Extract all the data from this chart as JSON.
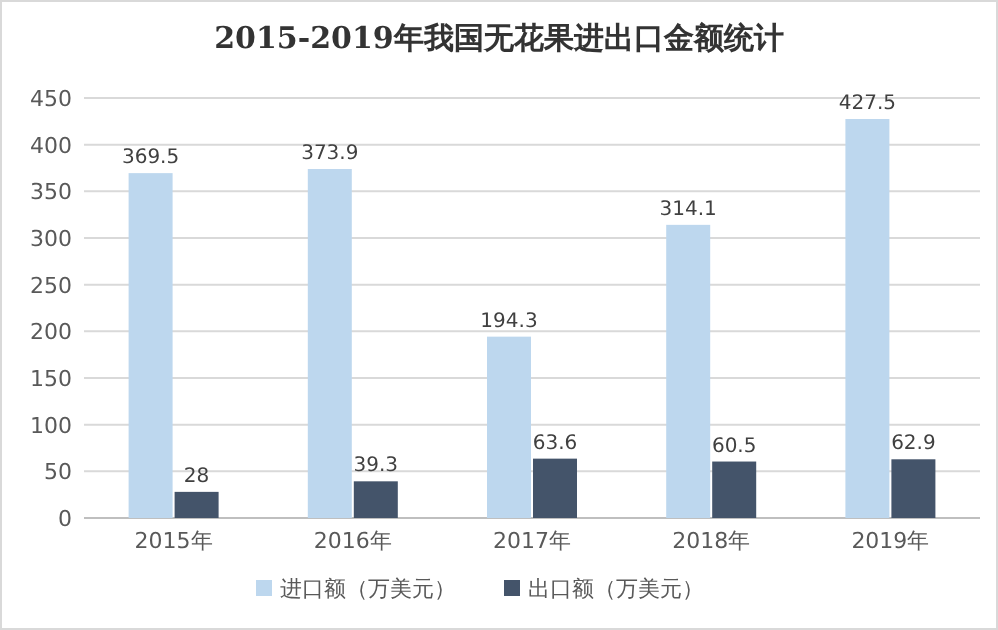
{
  "chart_data": {
    "type": "bar",
    "title": "2015-2019年我国无花果进出口金额统计",
    "categories": [
      "2015年",
      "2016年",
      "2017年",
      "2018年",
      "2019年"
    ],
    "series": [
      {
        "name": "进口额（万美元）",
        "color": "#bdd7ee",
        "values": [
          369.5,
          373.9,
          194.3,
          314.1,
          427.5
        ]
      },
      {
        "name": "出口额（万美元）",
        "color": "#44546a",
        "values": [
          28,
          39.3,
          63.6,
          60.5,
          62.9
        ]
      }
    ],
    "ylim": [
      0,
      450
    ],
    "yticks": [
      0,
      50,
      100,
      150,
      200,
      250,
      300,
      350,
      400,
      450
    ],
    "grid": "y",
    "data_labels": true,
    "legend": "bottom"
  }
}
